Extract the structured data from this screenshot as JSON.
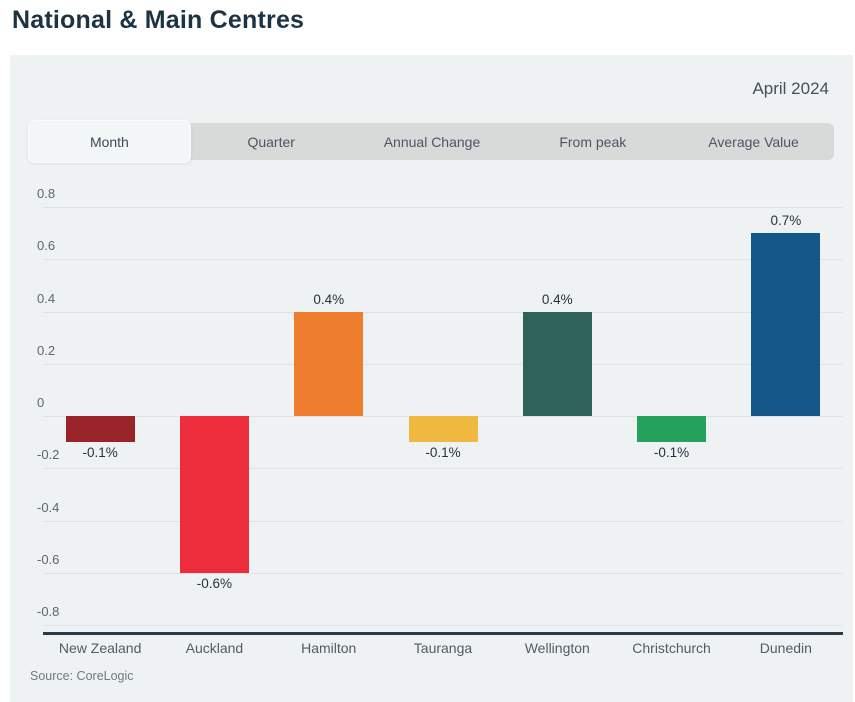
{
  "page": {
    "title": "National & Main Centres"
  },
  "panel": {
    "date_label": "April 2024",
    "tabs": [
      {
        "label": "Month",
        "active": true
      },
      {
        "label": "Quarter",
        "active": false
      },
      {
        "label": "Annual Change",
        "active": false
      },
      {
        "label": "From peak",
        "active": false
      },
      {
        "label": "Average Value",
        "active": false
      }
    ],
    "source": "Source: CoreLogic"
  },
  "chart_data": {
    "type": "bar",
    "title": "National & Main Centres",
    "period": "April 2024",
    "selected_metric": "Month",
    "categories": [
      "New Zealand",
      "Auckland",
      "Hamilton",
      "Tauranga",
      "Wellington",
      "Christchurch",
      "Dunedin"
    ],
    "values": [
      -0.1,
      -0.6,
      0.4,
      -0.1,
      0.4,
      -0.1,
      0.7
    ],
    "value_labels": [
      "-0.1%",
      "-0.6%",
      "0.4%",
      "-0.1%",
      "0.4%",
      "-0.1%",
      "0.7%"
    ],
    "bar_colors": [
      "#982329",
      "#ee2d3c",
      "#ef7d2e",
      "#efb83e",
      "#2f635a",
      "#23a15d",
      "#14588a"
    ],
    "ylim": [
      -0.8,
      0.8
    ],
    "ytick_step": 0.2,
    "yticks": [
      "0.8",
      "0.6",
      "0.4",
      "0.2",
      "0",
      "-0.2",
      "-0.4",
      "-0.6",
      "-0.8"
    ],
    "grid": true,
    "legend": "none",
    "source": "Source: CoreLogic"
  },
  "colors": {
    "title": "#1c3342",
    "panel_bg": "#eef2f3",
    "tab_bar_bg": "#d8dada",
    "active_tab_bg": "#f2f6f7",
    "gridline": "#dde2e4",
    "axis_line": "#2b3945"
  }
}
